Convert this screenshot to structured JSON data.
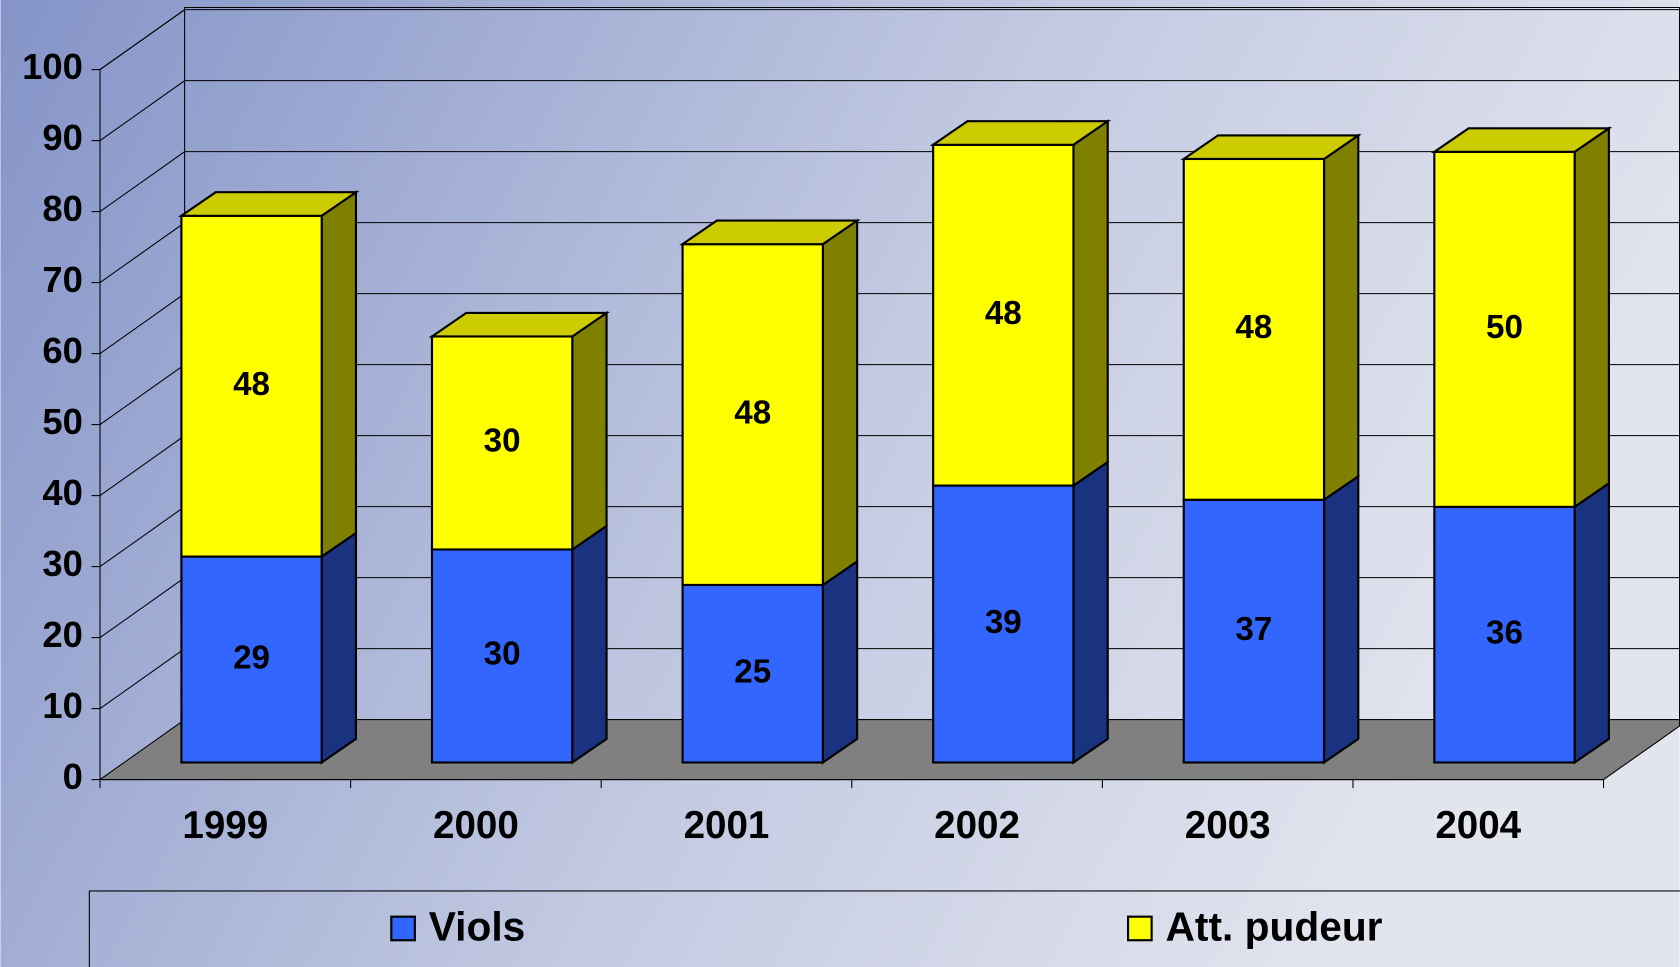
{
  "chart_data": {
    "type": "bar3d_stacked",
    "categories": [
      "1999",
      "2000",
      "2001",
      "2002",
      "2003",
      "2004"
    ],
    "series": [
      {
        "name": "Viols",
        "color": "#3366ff",
        "values": [
          29,
          30,
          25,
          39,
          37,
          36
        ]
      },
      {
        "name": "Att. pudeur",
        "color": "#ffff00",
        "values": [
          48,
          30,
          48,
          48,
          48,
          50
        ]
      }
    ],
    "ylim": [
      0,
      100
    ],
    "yticks": [
      0,
      10,
      20,
      30,
      40,
      50,
      60,
      70,
      80,
      90,
      100
    ],
    "grid": true,
    "legend": "bottom"
  }
}
